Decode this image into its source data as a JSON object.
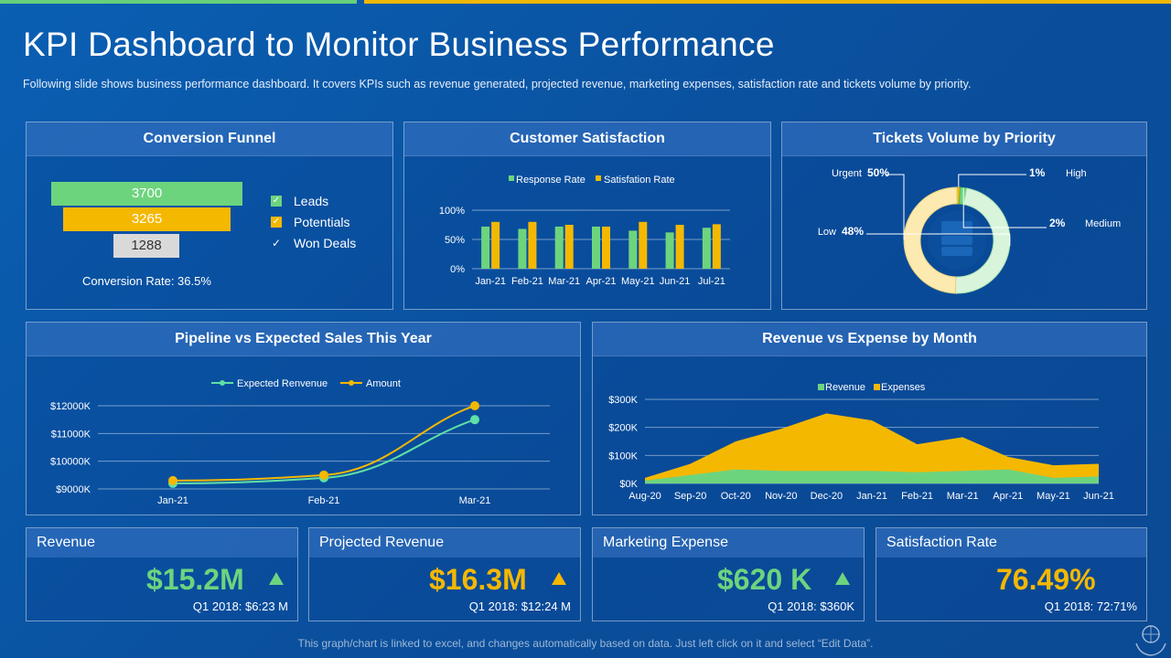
{
  "slide": {
    "title": "KPI Dashboard to Monitor Business Performance",
    "subtitle": "Following slide shows business performance  dashboard.  It covers  KPIs such as revenue  generated,  projected revenue,   marketing expenses,  satisfaction rate and tickets volume  by priority.",
    "footer": "This graph/chart is linked to excel, and changes automatically based on data. Just left click on it and select “Edit Data”."
  },
  "colors": {
    "green": "#6dd47e",
    "yellow": "#f5b800",
    "gray": "#d9d9d9"
  },
  "funnel": {
    "title": "Conversion Funnel",
    "values": [
      "3700",
      "3265",
      "1288"
    ],
    "legend": [
      "Leads",
      "Potentials",
      "Won Deals"
    ],
    "conversion_text": "Conversion  Rate: 36.5%"
  },
  "satisfaction_title": "Customer Satisfaction",
  "tickets_title": "Tickets Volume by Priority",
  "pipeline_title": "Pipeline vs Expected Sales This Year",
  "revexp_title": "Revenue vs Expense by Month",
  "kpis": [
    {
      "label": "Revenue",
      "value": "$15.2M",
      "sub": "Q1 2018: $6:23 M",
      "color": "green"
    },
    {
      "label": "Projected Revenue",
      "value": "$16.3M",
      "sub": "Q1 2018: $12:24 M",
      "color": "yellow"
    },
    {
      "label": "Marketing Expense",
      "value": "$620 K",
      "sub": "Q1 2018: $360K",
      "color": "green"
    },
    {
      "label": "Satisfaction Rate",
      "value": "76.49%",
      "sub": "Q1 2018: 72:71%",
      "color": "yellow"
    }
  ],
  "chart_data": [
    {
      "type": "bar",
      "title": "Customer Satisfaction",
      "categories": [
        "Jan-21",
        "Feb-21",
        "Mar-21",
        "Apr-21",
        "May-21",
        "Jun-21",
        "Jul-21"
      ],
      "series": [
        {
          "name": "Response Rate",
          "values": [
            72,
            68,
            72,
            72,
            65,
            62,
            70
          ]
        },
        {
          "name": "Satisfation Rate",
          "values": [
            80,
            80,
            75,
            72,
            80,
            75,
            76
          ]
        }
      ],
      "yticks": [
        "0%",
        "50%",
        "100%"
      ],
      "ylim": [
        0,
        100
      ]
    },
    {
      "type": "pie",
      "title": "Tickets Volume by Priority",
      "slices": [
        {
          "label": "Urgent",
          "value": 50,
          "text": "50%"
        },
        {
          "label": "High",
          "value": 1,
          "text": "1%"
        },
        {
          "label": "Medium",
          "value": 2,
          "text": "2%"
        },
        {
          "label": "Low",
          "value": 48,
          "text": "48%"
        }
      ]
    },
    {
      "type": "line",
      "title": "Pipeline vs Expected Sales This Year",
      "categories": [
        "Jan-21",
        "Feb-21",
        "Mar-21"
      ],
      "series": [
        {
          "name": "Expected Renvenue",
          "values": [
            9200,
            9400,
            11500
          ]
        },
        {
          "name": "Amount",
          "values": [
            9300,
            9500,
            12000
          ]
        }
      ],
      "yticks": [
        "$9000K",
        "$10000K",
        "$11000K",
        "$12000K"
      ],
      "ylim": [
        9000,
        12000
      ]
    },
    {
      "type": "area",
      "title": "Revenue vs Expense by Month",
      "categories": [
        "Aug-20",
        "Sep-20",
        "Oct-20",
        "Nov-20",
        "Dec-20",
        "Jan-21",
        "Feb-21",
        "Mar-21",
        "Apr-21",
        "May-21",
        "Jun-21"
      ],
      "series": [
        {
          "name": "Revenue",
          "values": [
            10,
            30,
            50,
            45,
            45,
            45,
            40,
            45,
            50,
            20,
            25
          ]
        },
        {
          "name": "Expenses",
          "values": [
            20,
            70,
            150,
            195,
            250,
            225,
            140,
            165,
            95,
            65,
            70
          ]
        }
      ],
      "yticks": [
        "$0K",
        "$100K",
        "$200K",
        "$300K"
      ],
      "ylim": [
        0,
        300
      ]
    }
  ]
}
